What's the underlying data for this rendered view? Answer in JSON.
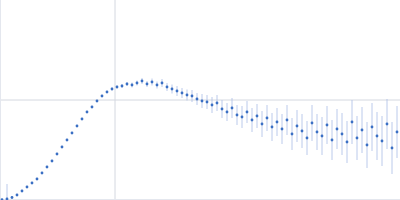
{
  "chart_data": {
    "type": "scatter",
    "color": "#3a6fc4",
    "grid": true,
    "tick_labels": false,
    "xlim": [
      0,
      400
    ],
    "ylim": [
      0,
      200
    ],
    "xticks": [
      115
    ],
    "yticks": [
      100
    ],
    "x": [
      2,
      7,
      12,
      17,
      22,
      27,
      32,
      37,
      42,
      47,
      52,
      57,
      62,
      67,
      72,
      77,
      82,
      87,
      92,
      97,
      102,
      107,
      112,
      117,
      122,
      127,
      132,
      137,
      142,
      147,
      152,
      157,
      162,
      167,
      172,
      177,
      182,
      187,
      192,
      197,
      202,
      207,
      212,
      217,
      222,
      227,
      232,
      237,
      242,
      247,
      252,
      257,
      262,
      267,
      272,
      277,
      282,
      287,
      292,
      297,
      302,
      307,
      312,
      317,
      322,
      327,
      332,
      337,
      342,
      347,
      352,
      357,
      362,
      367,
      372,
      377,
      382,
      387,
      392,
      397
    ],
    "values": [
      0.3,
      1,
      2.5,
      5,
      9,
      13,
      17,
      21,
      27,
      33,
      39,
      46,
      53,
      60,
      67,
      74,
      81,
      88,
      93,
      99,
      104,
      108,
      111,
      113,
      114,
      116,
      115,
      117,
      119,
      116,
      118,
      115,
      117,
      113,
      111,
      109,
      107,
      105,
      104,
      101,
      99,
      98,
      95,
      97,
      91,
      88,
      92,
      85,
      83,
      88,
      80,
      84,
      76,
      82,
      73,
      78,
      71,
      80,
      66,
      74,
      69,
      62,
      77,
      68,
      64,
      75,
      60,
      71,
      66,
      58,
      78,
      62,
      70,
      55,
      73,
      64,
      59,
      76,
      52,
      68
    ],
    "errors": [
      0.3,
      15,
      0.3,
      0.3,
      0.3,
      0.3,
      0.3,
      0.3,
      0.3,
      0.3,
      0.4,
      0.4,
      0.4,
      0.4,
      0.5,
      0.5,
      0.5,
      0.5,
      0.6,
      0.6,
      1,
      1,
      1.5,
      1.5,
      2,
      2,
      2.5,
      2.5,
      3,
      3,
      3.5,
      3.5,
      4,
      4,
      4.5,
      5,
      5,
      5.5,
      6,
      6,
      7,
      7,
      8,
      8,
      9,
      9,
      10,
      10,
      11,
      11,
      12,
      12,
      13,
      13,
      14,
      14,
      15,
      15,
      16,
      16,
      17,
      17,
      18,
      18,
      19,
      19,
      20,
      20,
      21,
      21,
      22,
      22,
      23,
      23,
      24,
      24,
      25,
      25,
      26,
      26
    ]
  }
}
